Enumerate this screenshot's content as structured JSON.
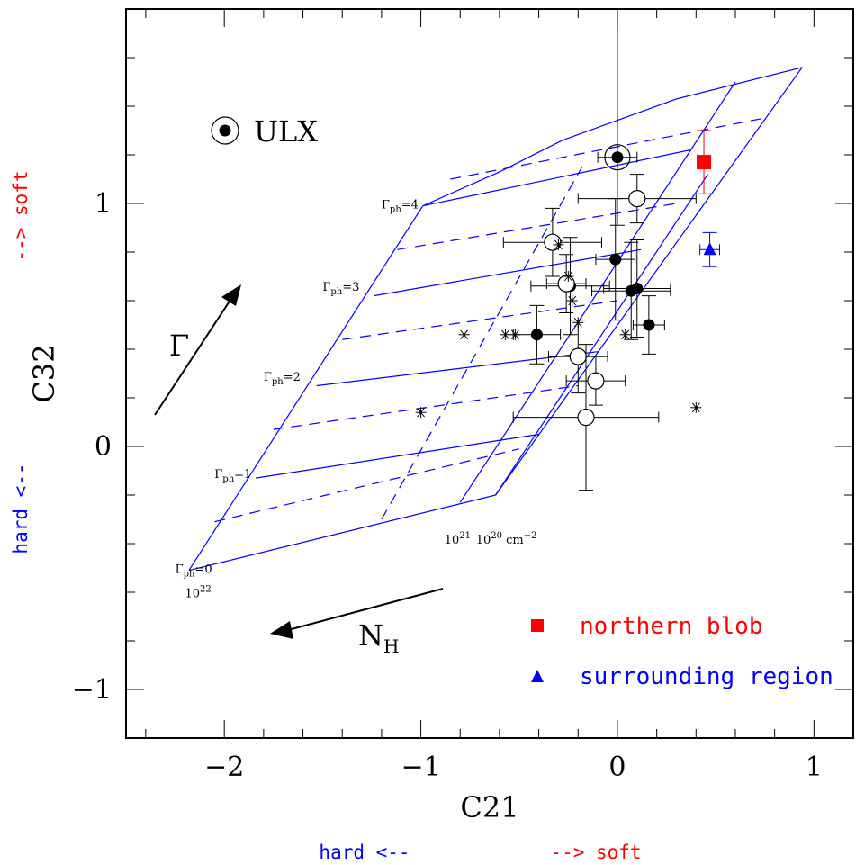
{
  "chart_data": {
    "type": "scatter",
    "xlabel": "C21",
    "ylabel": "C32",
    "xlim": [
      -2.5,
      1.2
    ],
    "ylim": [
      -1.2,
      1.8
    ],
    "xticks": [
      -2,
      -1,
      0,
      1
    ],
    "yticks": [
      -1,
      0,
      1
    ],
    "x_direction_labels": {
      "hard": "hard <--",
      "soft": "--> soft",
      "hard_color": "#0000ff",
      "soft_color": "#ff0000"
    },
    "y_direction_labels": {
      "hard": "hard <--",
      "soft": "--> soft",
      "hard_color": "#0000ff",
      "soft_color": "#ff0000"
    },
    "grid": {
      "color": "#0000ff",
      "gamma_labels": [
        {
          "base": "Γ",
          "sub": "ph",
          "text": "=0",
          "x": -2.25,
          "y": -0.52
        },
        {
          "base": "Γ",
          "sub": "ph",
          "text": "=1",
          "x": -2.05,
          "y": -0.13
        },
        {
          "base": "Γ",
          "sub": "ph",
          "text": "=2",
          "x": -1.8,
          "y": 0.27
        },
        {
          "base": "Γ",
          "sub": "ph",
          "text": "=3",
          "x": -1.5,
          "y": 0.64
        },
        {
          "base": "Γ",
          "sub": "ph",
          "text": "=4",
          "x": -1.2,
          "y": 0.98
        }
      ],
      "nh_labels": [
        {
          "base": "10",
          "sup": "22",
          "text": "",
          "x": -2.2,
          "y": -0.62
        },
        {
          "base": "10",
          "sup": "21",
          "text": "",
          "x": -0.88,
          "y": -0.4
        },
        {
          "base": "10",
          "sup": "20",
          "text": " cm",
          "sup2": "−2",
          "x": -0.72,
          "y": -0.4
        }
      ],
      "solid_lines": [
        [
          [
            -2.18,
            -0.51
          ],
          [
            -0.62,
            -0.2
          ]
        ],
        [
          [
            -1.84,
            -0.13
          ],
          [
            -0.4,
            0.05
          ]
        ],
        [
          [
            -1.53,
            0.25
          ],
          [
            -0.1,
            0.39
          ]
        ],
        [
          [
            -1.24,
            0.62
          ],
          [
            0.12,
            0.81
          ]
        ],
        [
          [
            -0.99,
            0.99
          ],
          [
            0.37,
            1.22
          ]
        ],
        [
          [
            -2.18,
            -0.51
          ],
          [
            -0.99,
            0.99
          ]
        ],
        [
          [
            -0.62,
            -0.2
          ],
          [
            0.94,
            1.56
          ]
        ],
        [
          [
            -0.8,
            -0.23
          ],
          [
            0.6,
            1.5
          ]
        ],
        [
          [
            -0.99,
            0.99
          ],
          [
            -0.6,
            1.13
          ],
          [
            -0.28,
            1.26
          ],
          [
            0.3,
            1.43
          ],
          [
            0.94,
            1.56
          ]
        ],
        [
          [
            -0.62,
            -0.2
          ],
          [
            0.46,
            1.12
          ]
        ]
      ],
      "dashed_lines": [
        [
          [
            -2.05,
            -0.31
          ],
          [
            -0.5,
            -0.01
          ]
        ],
        [
          [
            -1.75,
            0.07
          ],
          [
            -0.2,
            0.25
          ]
        ],
        [
          [
            -1.4,
            0.44
          ],
          [
            0.0,
            0.6
          ]
        ],
        [
          [
            -1.12,
            0.81
          ],
          [
            0.3,
            1.0
          ]
        ],
        [
          [
            -0.85,
            1.1
          ],
          [
            0.74,
            1.35
          ]
        ],
        [
          [
            -1.2,
            -0.3
          ],
          [
            -0.18,
            1.15
          ]
        ]
      ]
    },
    "series": [
      {
        "name": "",
        "marker": "filled-circle",
        "color": "#000000",
        "points": [
          {
            "x": -0.41,
            "y": 0.46,
            "xerr": 0.12,
            "yerr": 0.12
          },
          {
            "x": -0.24,
            "y": 0.66,
            "xerr": 0.2,
            "yerr": 0.2
          },
          {
            "x": -0.01,
            "y": 0.77,
            "xerr": 0.1,
            "yerr": 0.25
          },
          {
            "x": 0.07,
            "y": 0.64,
            "xerr": 0.2,
            "yerr": 0.2
          },
          {
            "x": 0.1,
            "y": 0.65,
            "xerr": 0.17,
            "yerr": 0.2
          },
          {
            "x": 0.16,
            "y": 0.5,
            "xerr": 0.08,
            "yerr": 0.12
          }
        ]
      },
      {
        "name": "",
        "marker": "open-circle",
        "color": "#000000",
        "points": [
          {
            "x": -0.33,
            "y": 0.84,
            "xerr": 0.25,
            "yerr": 0.14
          },
          {
            "x": -0.26,
            "y": 0.67,
            "xerr": 0.1,
            "yerr": 0.12
          },
          {
            "x": -0.2,
            "y": 0.37,
            "xerr": 0.15,
            "yerr": 0.15
          },
          {
            "x": -0.11,
            "y": 0.27,
            "xerr": 0.15,
            "yerr": 0.1
          },
          {
            "x": 0.1,
            "y": 1.02,
            "xerr": 0.3,
            "yerr": 0.1
          },
          {
            "x": -0.16,
            "y": 0.12,
            "xerr": 0.37,
            "yerr": 0.3
          }
        ]
      },
      {
        "name": "ULX",
        "marker": "ulx",
        "color": "#000000",
        "points": [
          {
            "x": 0.0,
            "y": 1.19,
            "xerr": 0.1,
            "yerr": 0.28,
            "yerr_top": 1.8
          }
        ]
      },
      {
        "name": "",
        "marker": "asterisk",
        "color": "#000000",
        "points": [
          {
            "x": -1.0,
            "y": 0.14
          },
          {
            "x": -0.78,
            "y": 0.46
          },
          {
            "x": -0.57,
            "y": 0.46
          },
          {
            "x": -0.52,
            "y": 0.46
          },
          {
            "x": -0.3,
            "y": 0.83
          },
          {
            "x": -0.25,
            "y": 0.7
          },
          {
            "x": -0.23,
            "y": 0.6
          },
          {
            "x": -0.2,
            "y": 0.51
          },
          {
            "x": 0.04,
            "y": 0.46
          },
          {
            "x": 0.4,
            "y": 0.16
          }
        ]
      },
      {
        "name": "northern blob",
        "marker": "square",
        "color": "#ff0000",
        "points": [
          {
            "x": 0.44,
            "y": 1.17,
            "xerr": 0.03,
            "yerr": 0.13
          }
        ]
      },
      {
        "name": "surrounding region",
        "marker": "triangle",
        "color": "#0000ff",
        "points": [
          {
            "x": 0.47,
            "y": 0.81,
            "xerr": 0.05,
            "yerr": 0.07
          }
        ]
      }
    ],
    "legend": {
      "position": "bottom-right",
      "entries": [
        {
          "label": "northern blob",
          "marker": "square",
          "color": "#ff0000"
        },
        {
          "label": "surrounding region",
          "marker": "triangle",
          "color": "#0000ff"
        }
      ]
    },
    "annotations": {
      "ulx_label": "ULX",
      "gamma_arrow_label": "Γ",
      "nh_arrow_label_base": "N",
      "nh_arrow_label_sub": "H"
    }
  }
}
